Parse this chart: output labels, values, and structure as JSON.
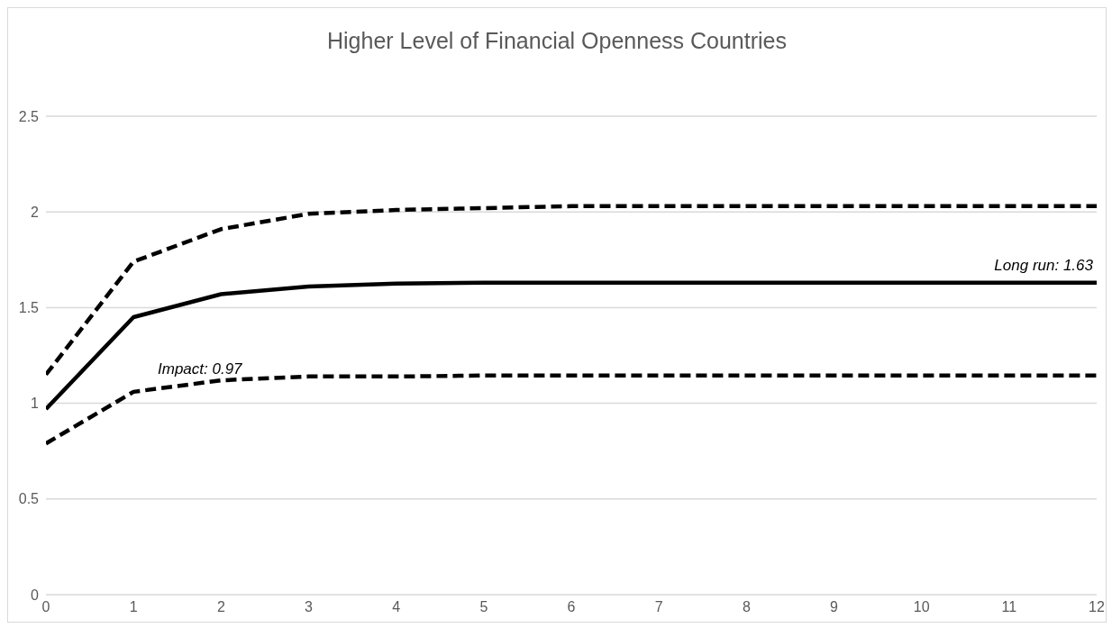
{
  "chart_data": {
    "type": "line",
    "title": "Higher Level of Financial Openness Countries",
    "x": [
      0,
      1,
      2,
      3,
      4,
      5,
      6,
      7,
      8,
      9,
      10,
      11,
      12
    ],
    "xlim": [
      0,
      12
    ],
    "xticks": [
      0,
      1,
      2,
      3,
      4,
      5,
      6,
      7,
      8,
      9,
      10,
      11,
      12
    ],
    "ylim": [
      0,
      2.5
    ],
    "yticks": [
      0,
      0.5,
      1,
      1.5,
      2,
      2.5
    ],
    "grid": "y",
    "legend": false,
    "marker": "none",
    "series": [
      {
        "color": "#000000",
        "line_style": "dashed",
        "values": [
          1.15,
          1.74,
          1.91,
          1.99,
          2.01,
          2.02,
          2.03,
          2.03,
          2.03,
          2.03,
          2.03,
          2.03,
          2.03
        ]
      },
      {
        "color": "#000000",
        "line_style": "solid",
        "values": [
          0.97,
          1.45,
          1.57,
          1.61,
          1.625,
          1.63,
          1.63,
          1.63,
          1.63,
          1.63,
          1.63,
          1.63,
          1.63
        ]
      },
      {
        "color": "#000000",
        "line_style": "dashed",
        "values": [
          0.79,
          1.06,
          1.12,
          1.14,
          1.14,
          1.145,
          1.145,
          1.145,
          1.145,
          1.145,
          1.145,
          1.145,
          1.145
        ]
      }
    ],
    "annotations": [
      "Impact: 0.97",
      {
        "text": "Long run: 1.63",
        "x": 12,
        "y": 1.63
      }
    ]
  }
}
